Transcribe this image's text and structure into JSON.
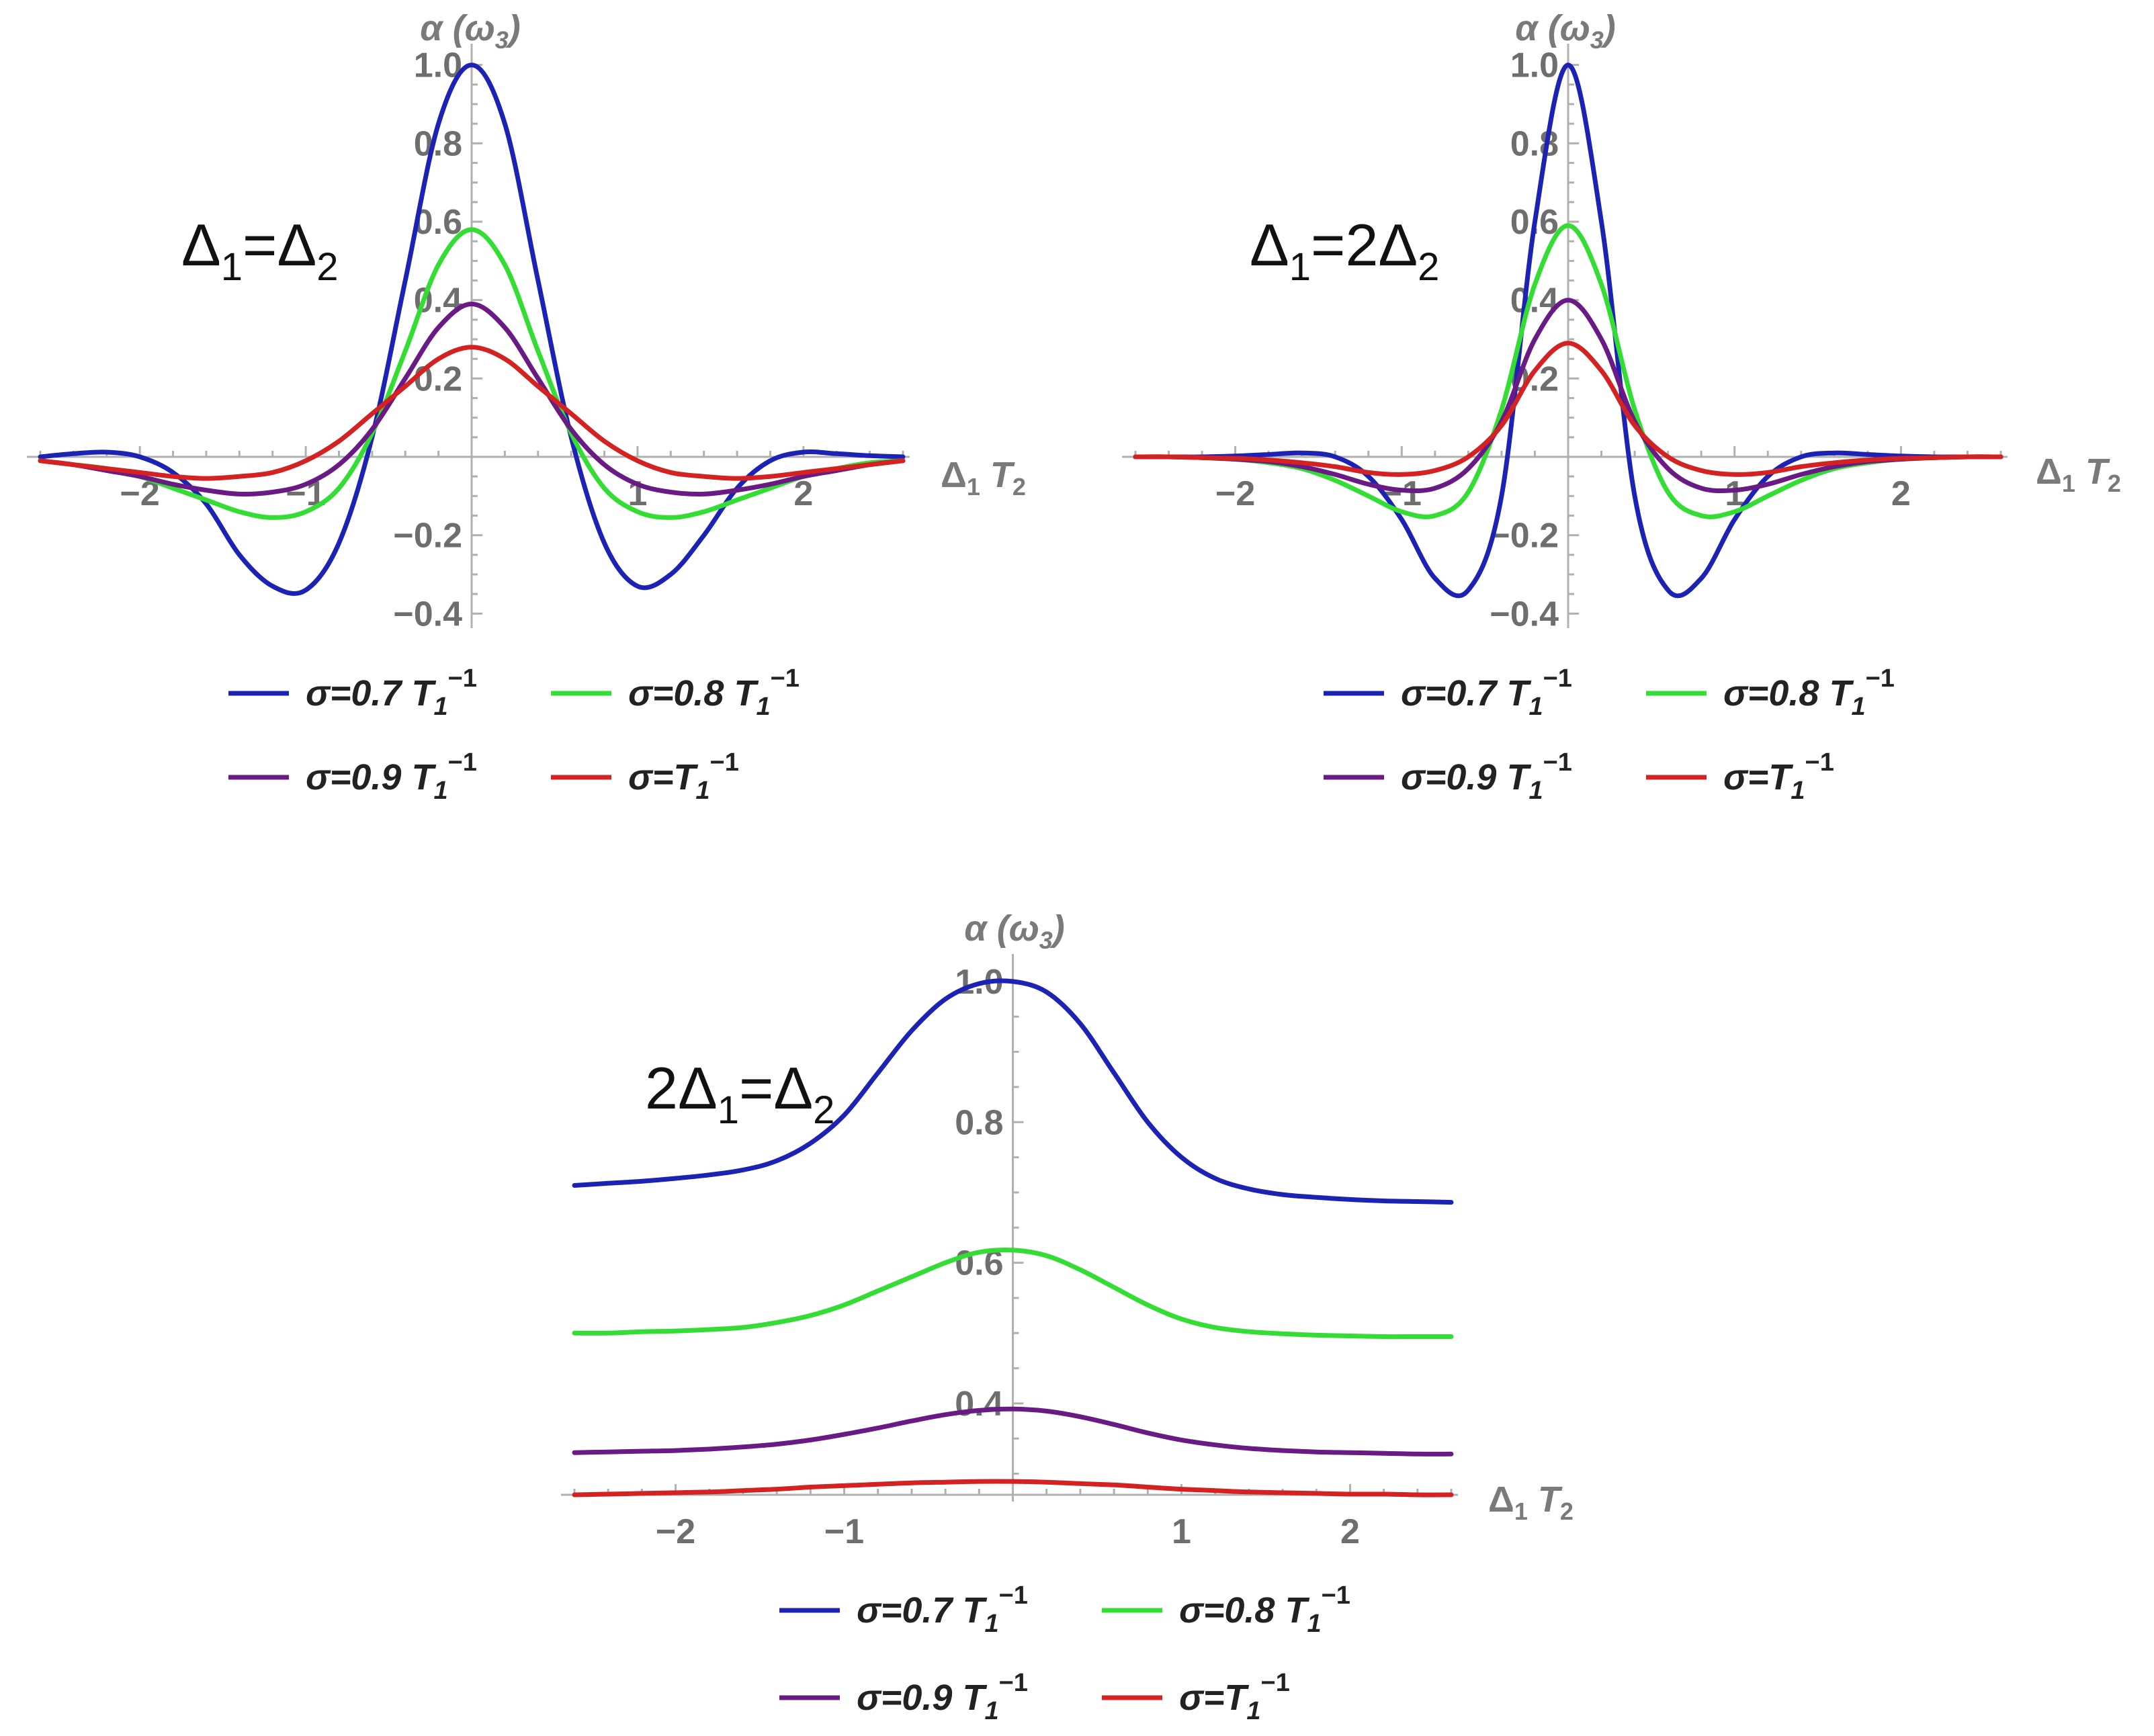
{
  "chart_data": [
    {
      "type": "line",
      "condition_label": {
        "pre": "Δ",
        "sub1": "1",
        "mid": "=Δ",
        "sub2": "2"
      },
      "xlabel": {
        "pre": "Δ",
        "sub1": "1",
        "mid": " T",
        "sub2": "2"
      },
      "ylabel": {
        "pre": "α (ω",
        "sub": "3",
        "post": ")"
      },
      "xlim": [
        -2.6,
        2.6
      ],
      "ylim": [
        -0.42,
        1.02
      ],
      "xticks": [
        -2,
        -1,
        1,
        2
      ],
      "xtick_labels": [
        "−2",
        "−1",
        "1",
        "2"
      ],
      "yticks": [
        -0.4,
        -0.2,
        0.2,
        0.4,
        0.6,
        0.8,
        1.0
      ],
      "ytick_labels": [
        "−0.4",
        "−0.2",
        "0.2",
        "0.4",
        "0.6",
        "0.8",
        "1.0"
      ],
      "x": [
        -2.6,
        -2.4,
        -2.2,
        -2.0,
        -1.8,
        -1.6,
        -1.4,
        -1.2,
        -1.0,
        -0.8,
        -0.6,
        -0.4,
        -0.2,
        0.0,
        0.2,
        0.4,
        0.6,
        0.8,
        1.0,
        1.2,
        1.4,
        1.6,
        1.8,
        2.0,
        2.2,
        2.4,
        2.6
      ],
      "series": [
        {
          "name": "σ=0.7 T1⁻¹",
          "color": "#1c23b4",
          "values": [
            0.0,
            0.008,
            0.012,
            0.0,
            -0.04,
            -0.12,
            -0.25,
            -0.33,
            -0.34,
            -0.22,
            0.05,
            0.45,
            0.85,
            1.0,
            0.85,
            0.45,
            0.05,
            -0.22,
            -0.33,
            -0.3,
            -0.2,
            -0.08,
            -0.01,
            0.012,
            0.008,
            0.003,
            0.0
          ]
        },
        {
          "name": "σ=0.8 T1⁻¹",
          "color": "#33dd33",
          "values": [
            -0.01,
            -0.02,
            -0.03,
            -0.05,
            -0.08,
            -0.11,
            -0.14,
            -0.155,
            -0.14,
            -0.08,
            0.06,
            0.27,
            0.49,
            0.58,
            0.49,
            0.27,
            0.06,
            -0.08,
            -0.14,
            -0.155,
            -0.14,
            -0.11,
            -0.08,
            -0.05,
            -0.03,
            -0.015,
            -0.01
          ]
        },
        {
          "name": "σ=0.9 T1⁻¹",
          "color": "#6a1a85",
          "values": [
            -0.01,
            -0.02,
            -0.035,
            -0.05,
            -0.07,
            -0.085,
            -0.095,
            -0.09,
            -0.07,
            -0.02,
            0.07,
            0.2,
            0.33,
            0.39,
            0.33,
            0.2,
            0.07,
            -0.02,
            -0.07,
            -0.09,
            -0.095,
            -0.085,
            -0.07,
            -0.05,
            -0.035,
            -0.02,
            -0.01
          ]
        },
        {
          "name": "σ=T1⁻¹",
          "color": "#d42222",
          "values": [
            -0.01,
            -0.02,
            -0.03,
            -0.04,
            -0.05,
            -0.055,
            -0.05,
            -0.04,
            -0.01,
            0.04,
            0.11,
            0.18,
            0.25,
            0.28,
            0.25,
            0.18,
            0.11,
            0.04,
            -0.01,
            -0.04,
            -0.05,
            -0.055,
            -0.05,
            -0.04,
            -0.03,
            -0.02,
            -0.01
          ]
        }
      ],
      "legend": "bottom"
    },
    {
      "type": "line",
      "condition_label": {
        "pre": "Δ",
        "sub1": "1",
        "mid": "=2Δ",
        "sub2": "2"
      },
      "xlabel": {
        "pre": "Δ",
        "sub1": "1",
        "mid": " T",
        "sub2": "2"
      },
      "ylabel": {
        "pre": "α (ω",
        "sub": "3",
        "post": ")"
      },
      "xlim": [
        -2.6,
        2.6
      ],
      "ylim": [
        -0.42,
        1.02
      ],
      "xticks": [
        -2,
        -1,
        1,
        2
      ],
      "xtick_labels": [
        "−2",
        "−1",
        "1",
        "2"
      ],
      "yticks": [
        -0.4,
        -0.2,
        0.2,
        0.4,
        0.6,
        0.8,
        1.0
      ],
      "ytick_labels": [
        "−0.4",
        "−0.2",
        "0.2",
        "0.4",
        "0.6",
        "0.8",
        "1.0"
      ],
      "x": [
        -2.6,
        -2.4,
        -2.2,
        -2.0,
        -1.8,
        -1.6,
        -1.4,
        -1.2,
        -1.0,
        -0.8,
        -0.6,
        -0.4,
        -0.2,
        0.0,
        0.2,
        0.4,
        0.6,
        0.8,
        1.0,
        1.2,
        1.4,
        1.6,
        1.8,
        2.0,
        2.2,
        2.4,
        2.6
      ],
      "series": [
        {
          "name": "σ=0.7 T1⁻¹",
          "color": "#1c23b4",
          "values": [
            0.0,
            0.0,
            0.0,
            0.002,
            0.006,
            0.01,
            0.0,
            -0.05,
            -0.16,
            -0.31,
            -0.34,
            -0.1,
            0.6,
            1.0,
            0.6,
            -0.1,
            -0.34,
            -0.31,
            -0.16,
            -0.05,
            0.0,
            0.01,
            0.006,
            0.002,
            0.0,
            0.0,
            0.0
          ]
        },
        {
          "name": "σ=0.8 T1⁻¹",
          "color": "#33dd33",
          "values": [
            0.0,
            0.0,
            -0.002,
            -0.006,
            -0.015,
            -0.03,
            -0.06,
            -0.1,
            -0.14,
            -0.15,
            -0.09,
            0.12,
            0.44,
            0.59,
            0.44,
            0.12,
            -0.09,
            -0.15,
            -0.14,
            -0.1,
            -0.06,
            -0.03,
            -0.015,
            -0.006,
            -0.002,
            0.0,
            0.0
          ]
        },
        {
          "name": "σ=0.9 T1⁻¹",
          "color": "#6a1a85",
          "values": [
            0.0,
            0.0,
            -0.002,
            -0.006,
            -0.012,
            -0.025,
            -0.045,
            -0.07,
            -0.085,
            -0.08,
            -0.03,
            0.09,
            0.3,
            0.4,
            0.3,
            0.09,
            -0.03,
            -0.08,
            -0.085,
            -0.07,
            -0.045,
            -0.025,
            -0.012,
            -0.006,
            -0.002,
            0.0,
            0.0
          ]
        },
        {
          "name": "σ=T1⁻¹",
          "color": "#d42222",
          "values": [
            0.0,
            0.0,
            -0.002,
            -0.004,
            -0.008,
            -0.015,
            -0.025,
            -0.04,
            -0.045,
            -0.035,
            0.0,
            0.08,
            0.22,
            0.29,
            0.22,
            0.08,
            0.0,
            -0.035,
            -0.045,
            -0.04,
            -0.025,
            -0.015,
            -0.008,
            -0.004,
            -0.002,
            0.0,
            0.0
          ]
        }
      ],
      "legend": "bottom"
    },
    {
      "type": "line",
      "condition_label": {
        "pre": "2Δ",
        "sub1": "1",
        "mid": "=Δ",
        "sub2": "2"
      },
      "xlabel": {
        "pre": "Δ",
        "sub1": "1",
        "mid": " T",
        "sub2": "2"
      },
      "ylabel": {
        "pre": "α (ω",
        "sub": "3",
        "post": ")"
      },
      "xlim": [
        -2.6,
        2.6
      ],
      "ylim": [
        0.27,
        1.02
      ],
      "x_axis_at": 0.27,
      "xticks": [
        -2,
        -1,
        1,
        2
      ],
      "xtick_labels": [
        "−2",
        "−1",
        "1",
        "2"
      ],
      "yticks": [
        0.4,
        0.6,
        0.8,
        1.0
      ],
      "ytick_labels": [
        "0.4",
        "0.6",
        "0.8",
        "1.0"
      ],
      "x": [
        -2.6,
        -2.4,
        -2.2,
        -2.0,
        -1.8,
        -1.6,
        -1.4,
        -1.2,
        -1.0,
        -0.8,
        -0.6,
        -0.4,
        -0.2,
        0.0,
        0.2,
        0.4,
        0.6,
        0.8,
        1.0,
        1.2,
        1.4,
        1.6,
        1.8,
        2.0,
        2.2,
        2.4,
        2.6
      ],
      "series": [
        {
          "name": "σ=0.7 T1⁻¹",
          "color": "#1c23b4",
          "values": [
            0.71,
            0.713,
            0.716,
            0.72,
            0.725,
            0.732,
            0.745,
            0.77,
            0.81,
            0.87,
            0.93,
            0.975,
            0.997,
            1.0,
            0.985,
            0.94,
            0.87,
            0.8,
            0.75,
            0.72,
            0.705,
            0.697,
            0.693,
            0.69,
            0.688,
            0.687,
            0.686
          ]
        },
        {
          "name": "σ=0.8 T1⁻¹",
          "color": "#33dd33",
          "values": [
            0.5,
            0.5,
            0.502,
            0.503,
            0.505,
            0.508,
            0.515,
            0.525,
            0.54,
            0.56,
            0.58,
            0.6,
            0.615,
            0.618,
            0.61,
            0.59,
            0.565,
            0.54,
            0.52,
            0.508,
            0.502,
            0.499,
            0.497,
            0.496,
            0.495,
            0.495,
            0.495
          ]
        },
        {
          "name": "σ=0.9 T1⁻¹",
          "color": "#6a1a85",
          "values": [
            0.33,
            0.331,
            0.332,
            0.333,
            0.335,
            0.338,
            0.342,
            0.348,
            0.356,
            0.365,
            0.375,
            0.384,
            0.39,
            0.392,
            0.389,
            0.381,
            0.37,
            0.358,
            0.348,
            0.341,
            0.336,
            0.333,
            0.331,
            0.33,
            0.329,
            0.328,
            0.328
          ]
        },
        {
          "name": "σ=T1⁻¹",
          "color": "#d42222",
          "values": [
            0.27,
            0.271,
            0.272,
            0.273,
            0.274,
            0.276,
            0.278,
            0.281,
            0.283,
            0.285,
            0.287,
            0.288,
            0.289,
            0.289,
            0.288,
            0.286,
            0.284,
            0.281,
            0.278,
            0.276,
            0.274,
            0.273,
            0.272,
            0.271,
            0.271,
            0.27,
            0.27
          ]
        }
      ],
      "legend": "bottom"
    }
  ]
}
